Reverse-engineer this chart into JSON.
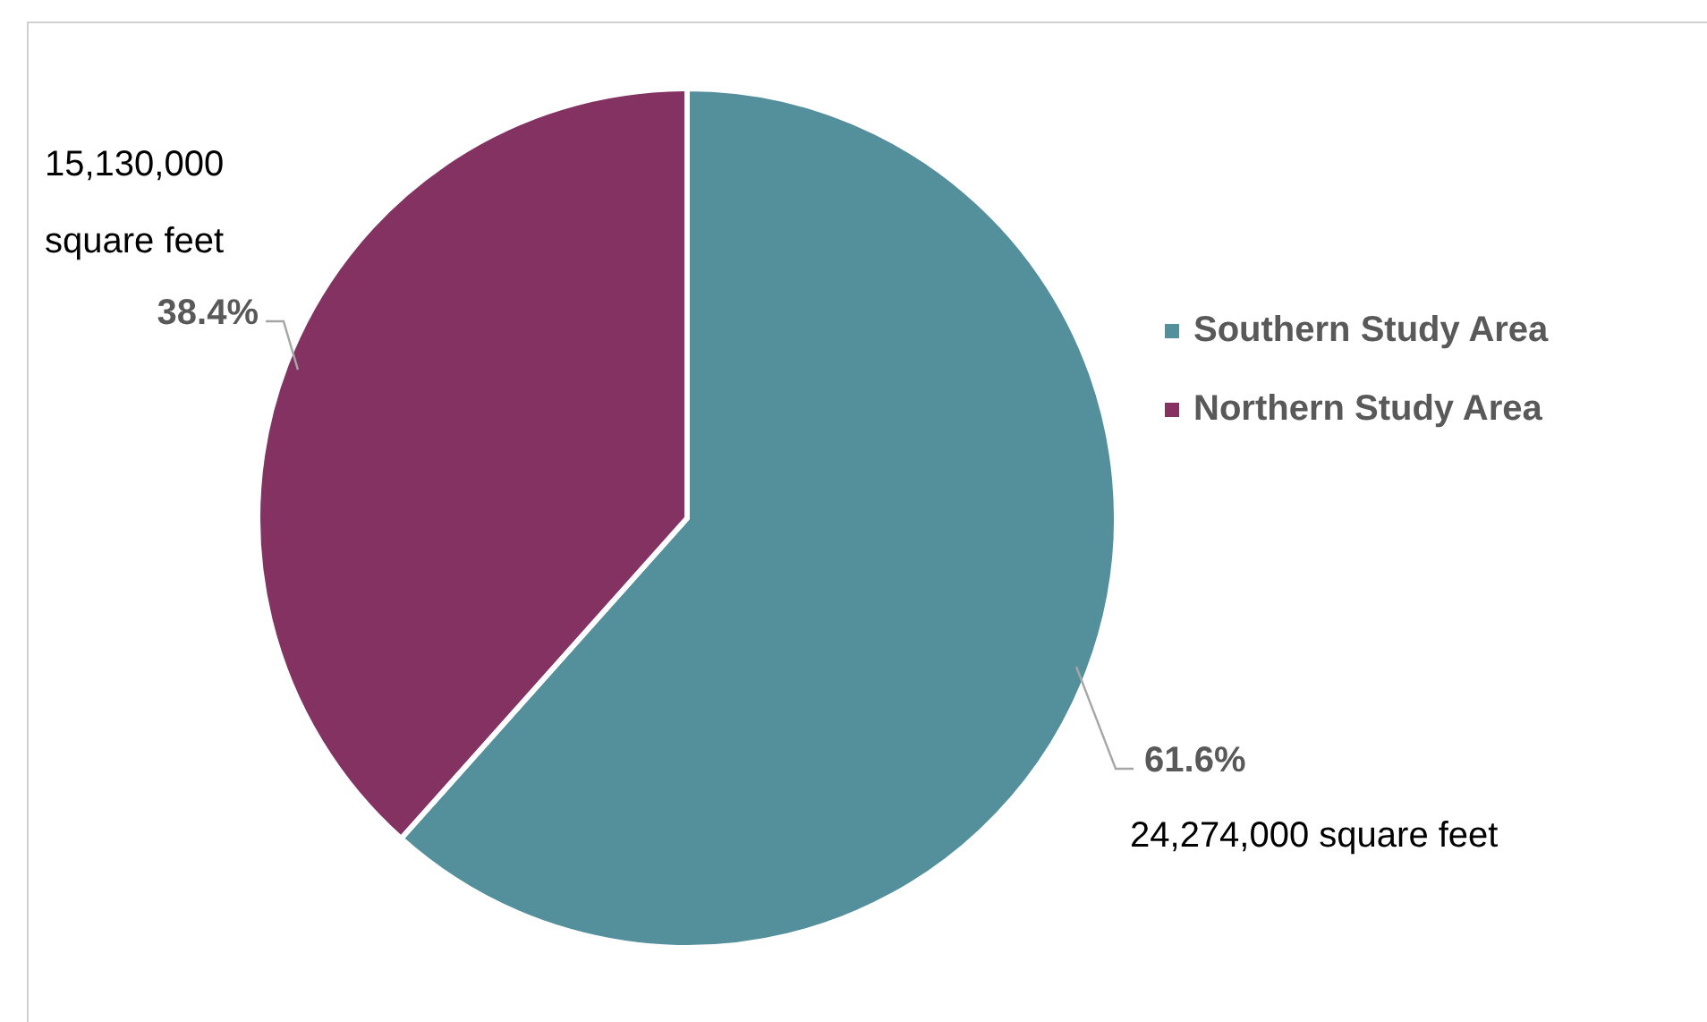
{
  "chart_data": {
    "type": "pie",
    "categories": [
      "Southern Study Area",
      "Northern Study Area"
    ],
    "values": [
      61.6,
      38.4
    ],
    "colors": [
      "#548f9c",
      "#833262"
    ],
    "value_labels": [
      "61.6%",
      "38.4%"
    ],
    "annotations": [
      {
        "text": "24,274,000 square feet",
        "x": "Southern Study Area"
      },
      {
        "text": "15,130,000 square feet",
        "x": "Northern Study Area"
      }
    ],
    "legend": "right"
  }
}
